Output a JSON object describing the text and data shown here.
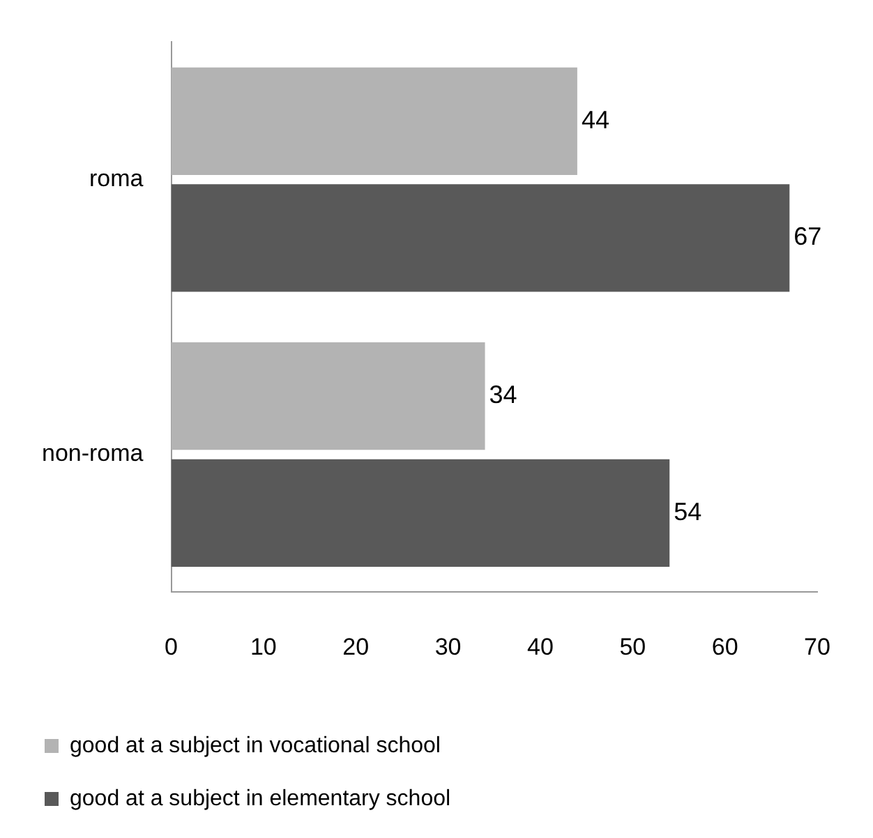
{
  "chart_data": {
    "type": "bar",
    "orientation": "horizontal",
    "categories": [
      "roma",
      "non-roma"
    ],
    "series": [
      {
        "name": "good at a subject in vocational school",
        "color": "#b3b3b3",
        "values": [
          44,
          34
        ]
      },
      {
        "name": "good at a subject in elementary school",
        "color": "#595959",
        "values": [
          67,
          54
        ]
      }
    ],
    "xlim": [
      0,
      70
    ],
    "xticks": [
      0,
      10,
      20,
      30,
      40,
      50,
      60,
      70
    ],
    "data_labels": true,
    "grid": false,
    "legend": "bottom"
  }
}
